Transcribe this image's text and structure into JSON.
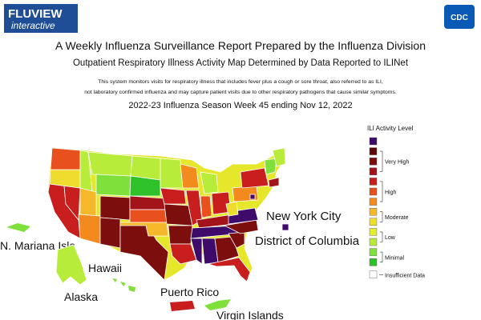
{
  "header": {
    "logo_title": "FLUVIEW",
    "logo_subtitle": "interactive",
    "agency": "CDC"
  },
  "title": "A Weekly Influenza Surveillance Report Prepared by the Influenza Division",
  "subtitle": "Outpatient Respiratory Illness Activity Map Determined by Data Reported to ILINet",
  "description": [
    "This system monitors visits for respiratory illness that includes fever plus a cough or sore throat, also referred to as ILI,",
    "not laboratory confirmed influenza and may capture patient visits due to other respiratory pathogens that cause similar symptoms."
  ],
  "season": "2022-23 Influenza Season Week 45 ending Nov 12, 2022",
  "map": {
    "labels": [
      "N. Mariana Isla",
      "Hawaii",
      "Alaska",
      "Puerto Rico",
      "Virgin Islands",
      "New York City",
      "District of Columbia"
    ]
  },
  "legend": {
    "title": "ILI Activity Level",
    "swatch_colors": [
      "#3e0b6b",
      "#5c0a0a",
      "#7d0e0e",
      "#a3141a",
      "#c81e1e",
      "#e8501e",
      "#f28a1e",
      "#f5b82b",
      "#f0dc2e",
      "#e2ee2e",
      "#b8ec3a",
      "#7fe03c",
      "#2ec12a"
    ],
    "levels": [
      "Very High",
      "High",
      "Moderate",
      "Low",
      "Minimal"
    ],
    "insufficient": "Insufficient Data"
  }
}
